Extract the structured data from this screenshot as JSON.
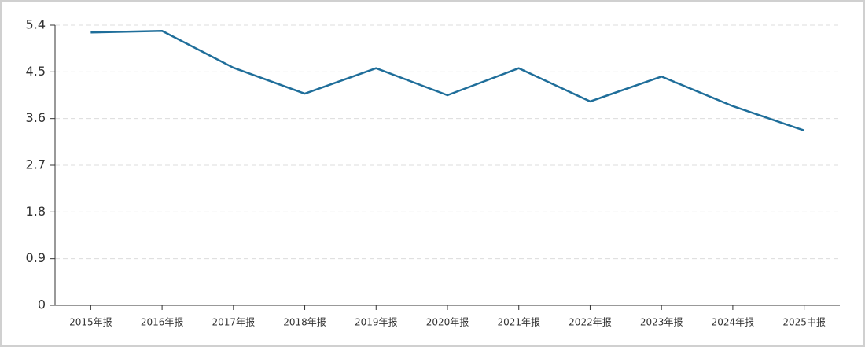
{
  "chart_data": {
    "type": "line",
    "categories": [
      "2015年报",
      "2016年报",
      "2017年报",
      "2018年报",
      "2019年报",
      "2020年报",
      "2021年报",
      "2022年报",
      "2023年报",
      "2024年报",
      "2025中报"
    ],
    "series": [
      {
        "color": "#1f6e9a",
        "values": [
          5.26,
          5.29,
          4.58,
          4.08,
          4.57,
          4.05,
          4.57,
          3.93,
          4.41,
          3.84,
          3.37
        ]
      }
    ],
    "ylim": [
      0,
      5.4
    ],
    "yticks": [
      0,
      0.9,
      1.8,
      2.7,
      3.6,
      4.5,
      5.4
    ],
    "grid": true
  }
}
